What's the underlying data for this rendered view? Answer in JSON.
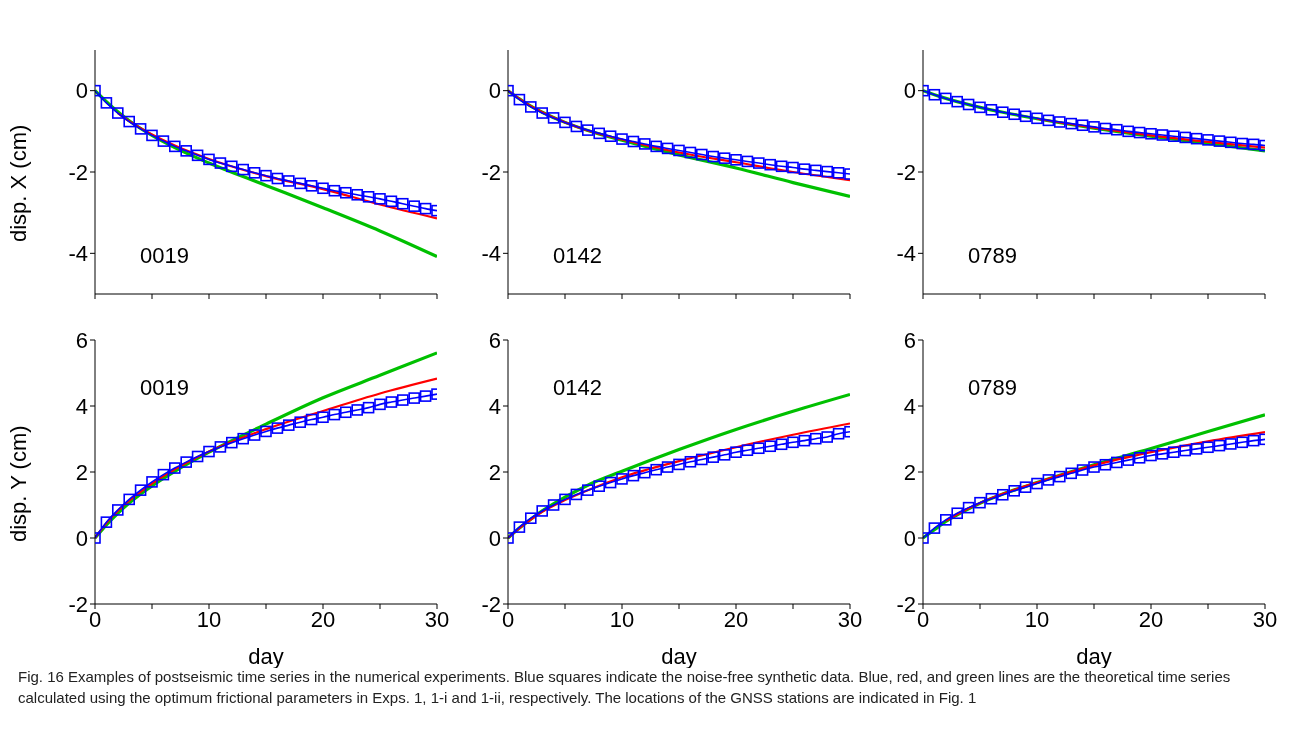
{
  "chart_data": [
    {
      "type": "line",
      "ylabel": "disp. X (cm)",
      "annotations": [
        "0019"
      ],
      "xlim": [
        0,
        30
      ],
      "xticks": [
        0,
        {
          "value": 5,
          "label": null
        },
        10,
        {
          "value": 15,
          "label": null
        },
        20,
        {
          "value": 25,
          "label": null
        },
        30
      ],
      "ylim": [
        -5,
        1
      ],
      "yticks": [
        -4,
        -2,
        0
      ],
      "tick_labels": "y",
      "grid": false,
      "legend": false,
      "x": [
        0,
        1,
        2,
        3,
        4,
        5,
        6,
        7,
        8,
        9,
        10,
        11,
        12,
        13,
        14,
        15,
        16,
        17,
        18,
        19,
        20,
        21,
        22,
        23,
        24,
        25,
        26,
        27,
        28,
        29,
        30
      ],
      "series": [
        {
          "color": "#0000ff",
          "marker": "square",
          "values": [
            0,
            -0.3,
            -0.55,
            -0.76,
            -0.94,
            -1.1,
            -1.24,
            -1.37,
            -1.48,
            -1.59,
            -1.69,
            -1.78,
            -1.86,
            -1.94,
            -2.02,
            -2.09,
            -2.16,
            -2.22,
            -2.28,
            -2.34,
            -2.4,
            -2.46,
            -2.51,
            -2.56,
            -2.61,
            -2.66,
            -2.72,
            -2.78,
            -2.84,
            -2.9,
            -2.95
          ]
        },
        {
          "color": "#ff0000",
          "marker": "none",
          "x": [
            2,
            3,
            5,
            7,
            10,
            15,
            20,
            25,
            30
          ],
          "values": [
            -0.55,
            -0.75,
            -1.08,
            -1.35,
            -1.68,
            -2.1,
            -2.42,
            -2.8,
            -3.14
          ]
        },
        {
          "color": "#00c000",
          "marker": "none",
          "x": [
            0,
            1,
            2,
            3,
            5,
            7,
            10,
            15,
            20,
            25,
            30
          ],
          "values": [
            0,
            -0.27,
            -0.52,
            -0.74,
            -1.1,
            -1.4,
            -1.78,
            -2.33,
            -2.88,
            -3.45,
            -4.08
          ]
        }
      ]
    },
    {
      "type": "line",
      "annotations": [
        "0142"
      ],
      "xlim": [
        0,
        30
      ],
      "xticks": [
        0,
        {
          "value": 5,
          "label": null
        },
        10,
        {
          "value": 15,
          "label": null
        },
        20,
        {
          "value": 25,
          "label": null
        },
        30
      ],
      "ylim": [
        -5,
        1
      ],
      "yticks": [
        -4,
        -2,
        0
      ],
      "tick_labels": "y",
      "grid": false,
      "legend": false,
      "x": [
        0,
        1,
        2,
        3,
        4,
        5,
        6,
        7,
        8,
        9,
        10,
        11,
        12,
        13,
        14,
        15,
        16,
        17,
        18,
        19,
        20,
        21,
        22,
        23,
        24,
        25,
        26,
        27,
        28,
        29,
        30
      ],
      "series": [
        {
          "color": "#0000ff",
          "marker": "square",
          "values": [
            0,
            -0.22,
            -0.4,
            -0.55,
            -0.67,
            -0.78,
            -0.88,
            -0.97,
            -1.05,
            -1.12,
            -1.19,
            -1.25,
            -1.31,
            -1.37,
            -1.42,
            -1.47,
            -1.52,
            -1.57,
            -1.62,
            -1.66,
            -1.7,
            -1.74,
            -1.78,
            -1.82,
            -1.86,
            -1.89,
            -1.93,
            -1.96,
            -1.99,
            -2.02,
            -2.05
          ]
        },
        {
          "color": "#ff0000",
          "marker": "none",
          "x": [
            0,
            1,
            2,
            3,
            5,
            7,
            10,
            15,
            20,
            25,
            30
          ],
          "values": [
            0,
            -0.2,
            -0.38,
            -0.53,
            -0.78,
            -0.98,
            -1.2,
            -1.52,
            -1.76,
            -2.0,
            -2.2
          ]
        },
        {
          "color": "#00c000",
          "marker": "none",
          "x": [
            0,
            1,
            2,
            3,
            5,
            7,
            10,
            15,
            20,
            25,
            30
          ],
          "values": [
            0,
            -0.2,
            -0.38,
            -0.53,
            -0.78,
            -0.98,
            -1.22,
            -1.58,
            -1.9,
            -2.26,
            -2.6
          ]
        }
      ]
    },
    {
      "type": "line",
      "annotations": [
        "0789"
      ],
      "xlim": [
        0,
        30
      ],
      "xticks": [
        0,
        {
          "value": 5,
          "label": null
        },
        10,
        {
          "value": 15,
          "label": null
        },
        20,
        {
          "value": 25,
          "label": null
        },
        30
      ],
      "ylim": [
        -5,
        1
      ],
      "yticks": [
        -4,
        -2,
        0
      ],
      "tick_labels": "y",
      "grid": false,
      "legend": false,
      "x": [
        0,
        1,
        2,
        3,
        4,
        5,
        6,
        7,
        8,
        9,
        10,
        11,
        12,
        13,
        14,
        15,
        16,
        17,
        18,
        19,
        20,
        21,
        22,
        23,
        24,
        25,
        26,
        27,
        28,
        29,
        30
      ],
      "series": [
        {
          "color": "#0000ff",
          "marker": "square",
          "values": [
            0,
            -0.1,
            -0.19,
            -0.27,
            -0.34,
            -0.41,
            -0.47,
            -0.53,
            -0.58,
            -0.63,
            -0.68,
            -0.73,
            -0.77,
            -0.81,
            -0.85,
            -0.89,
            -0.93,
            -0.96,
            -1.0,
            -1.03,
            -1.06,
            -1.09,
            -1.12,
            -1.15,
            -1.18,
            -1.21,
            -1.24,
            -1.27,
            -1.3,
            -1.32,
            -1.35
          ]
        },
        {
          "color": "#ff0000",
          "marker": "none",
          "x": [
            10,
            15,
            20,
            25,
            30
          ],
          "values": [
            -0.69,
            -0.91,
            -1.1,
            -1.26,
            -1.4
          ]
        },
        {
          "color": "#00c000",
          "marker": "none",
          "x": [
            0,
            1,
            2,
            3,
            5,
            7,
            10,
            15,
            20,
            25,
            30
          ],
          "values": [
            0,
            -0.1,
            -0.19,
            -0.27,
            -0.41,
            -0.53,
            -0.69,
            -0.92,
            -1.12,
            -1.3,
            -1.48
          ]
        }
      ]
    },
    {
      "type": "line",
      "xlabel": "day",
      "ylabel": "disp. Y (cm)",
      "annotations": [
        "0019"
      ],
      "xlim": [
        0,
        30
      ],
      "xticks": [
        0,
        {
          "value": 5,
          "label": null
        },
        10,
        {
          "value": 15,
          "label": null
        },
        20,
        {
          "value": 25,
          "label": null
        },
        30
      ],
      "ylim": [
        -2,
        6
      ],
      "yticks": [
        -2,
        0,
        2,
        4,
        6
      ],
      "grid": false,
      "legend": false,
      "x": [
        0,
        1,
        2,
        3,
        4,
        5,
        6,
        7,
        8,
        9,
        10,
        11,
        12,
        13,
        14,
        15,
        16,
        17,
        18,
        19,
        20,
        21,
        22,
        23,
        24,
        25,
        26,
        27,
        28,
        29,
        30
      ],
      "series": [
        {
          "color": "#0000ff",
          "marker": "square",
          "values": [
            0,
            0.48,
            0.85,
            1.17,
            1.45,
            1.7,
            1.92,
            2.12,
            2.3,
            2.47,
            2.62,
            2.76,
            2.89,
            3.01,
            3.12,
            3.23,
            3.33,
            3.42,
            3.51,
            3.59,
            3.66,
            3.74,
            3.81,
            3.88,
            3.95,
            4.05,
            4.12,
            4.18,
            4.24,
            4.3,
            4.36
          ]
        },
        {
          "color": "#ff0000",
          "marker": "none",
          "x": [
            0,
            1,
            2,
            3,
            5,
            7,
            10,
            15,
            20,
            25,
            30
          ],
          "values": [
            0,
            0.45,
            0.82,
            1.13,
            1.65,
            2.08,
            2.62,
            3.3,
            3.85,
            4.38,
            4.83
          ]
        },
        {
          "color": "#00c000",
          "marker": "none",
          "x": [
            0,
            1,
            2,
            3,
            5,
            7,
            10,
            15,
            20,
            25,
            30
          ],
          "values": [
            0,
            0.4,
            0.75,
            1.06,
            1.58,
            2.02,
            2.6,
            3.45,
            4.25,
            4.93,
            5.61
          ]
        }
      ]
    },
    {
      "type": "line",
      "xlabel": "day",
      "annotations": [
        "0142"
      ],
      "xlim": [
        0,
        30
      ],
      "xticks": [
        0,
        {
          "value": 5,
          "label": null
        },
        10,
        {
          "value": 15,
          "label": null
        },
        20,
        {
          "value": 25,
          "label": null
        },
        30
      ],
      "ylim": [
        -2,
        6
      ],
      "yticks": [
        -2,
        0,
        2,
        4,
        6
      ],
      "grid": false,
      "legend": false,
      "x": [
        0,
        1,
        2,
        3,
        4,
        5,
        6,
        7,
        8,
        9,
        10,
        11,
        12,
        13,
        14,
        15,
        16,
        17,
        18,
        19,
        20,
        21,
        22,
        23,
        24,
        25,
        26,
        27,
        28,
        29,
        30
      ],
      "series": [
        {
          "color": "#0000ff",
          "marker": "square",
          "values": [
            0,
            0.33,
            0.6,
            0.82,
            1.0,
            1.17,
            1.32,
            1.45,
            1.57,
            1.68,
            1.79,
            1.89,
            1.98,
            2.07,
            2.15,
            2.23,
            2.31,
            2.38,
            2.45,
            2.52,
            2.6,
            2.66,
            2.72,
            2.78,
            2.84,
            2.9,
            2.95,
            3.01,
            3.06,
            3.16,
            3.22
          ]
        },
        {
          "color": "#ff0000",
          "marker": "none",
          "x": [
            0,
            1,
            2,
            3,
            5,
            7,
            10,
            15,
            20,
            25,
            30
          ],
          "values": [
            0,
            0.3,
            0.56,
            0.79,
            1.15,
            1.45,
            1.84,
            2.33,
            2.75,
            3.13,
            3.47
          ]
        },
        {
          "color": "#00c000",
          "marker": "none",
          "x": [
            0,
            1,
            2,
            3,
            5,
            7,
            10,
            15,
            20,
            25,
            30
          ],
          "values": [
            0,
            0.3,
            0.57,
            0.82,
            1.24,
            1.6,
            2.02,
            2.68,
            3.29,
            3.84,
            4.35
          ]
        }
      ]
    },
    {
      "type": "line",
      "xlabel": "day",
      "annotations": [
        "0789",
        "Fig. 16  Examples of postseismic time series in the numerical experiments. Blue squares indicate the noise-free synthetic data. Blue, red, and green lines are the theoretical time series calculated using the optimum frictional parameters in Exps. 1, 1-i and 1-ii, respectively. The locations of the GNSS stations are indicated in Fig. 1"
      ],
      "xlim": [
        0,
        30
      ],
      "xticks": [
        0,
        {
          "value": 5,
          "label": null
        },
        10,
        {
          "value": 15,
          "label": null
        },
        20,
        {
          "value": 25,
          "label": null
        },
        30
      ],
      "ylim": [
        -2,
        6
      ],
      "yticks": [
        -2,
        0,
        2,
        4,
        6
      ],
      "grid": false,
      "legend": false,
      "x": [
        0,
        1,
        2,
        3,
        4,
        5,
        6,
        7,
        8,
        9,
        10,
        11,
        12,
        13,
        14,
        15,
        16,
        17,
        18,
        19,
        20,
        21,
        22,
        23,
        24,
        25,
        26,
        27,
        28,
        29,
        30
      ],
      "series": [
        {
          "color": "#0000ff",
          "marker": "square",
          "values": [
            0,
            0.3,
            0.55,
            0.75,
            0.92,
            1.07,
            1.19,
            1.31,
            1.43,
            1.54,
            1.65,
            1.76,
            1.86,
            1.96,
            2.06,
            2.15,
            2.22,
            2.29,
            2.36,
            2.43,
            2.5,
            2.55,
            2.6,
            2.65,
            2.7,
            2.75,
            2.8,
            2.85,
            2.9,
            2.95,
            2.99
          ]
        },
        {
          "color": "#ff0000",
          "marker": "none",
          "x": [
            2,
            3,
            5,
            7,
            10,
            15,
            20,
            25,
            30
          ],
          "values": [
            0.52,
            0.72,
            1.06,
            1.34,
            1.68,
            2.2,
            2.6,
            2.93,
            3.21
          ]
        },
        {
          "color": "#00c000",
          "marker": "none",
          "x": [
            0,
            1,
            2,
            3,
            5,
            7,
            10,
            15,
            20,
            25,
            30
          ],
          "values": [
            0,
            0.25,
            0.5,
            0.7,
            1.05,
            1.33,
            1.68,
            2.22,
            2.71,
            3.23,
            3.73
          ]
        }
      ]
    }
  ]
}
